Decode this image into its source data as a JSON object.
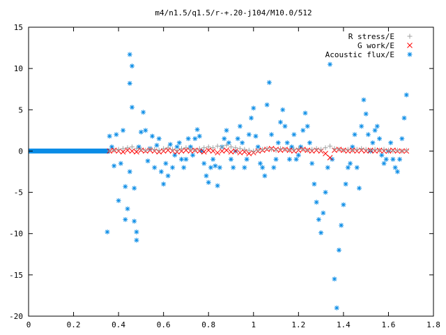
{
  "chart_data": {
    "type": "scatter",
    "title": "m4/n1.5/q1.5/r-+.20-j104/M10.0/512",
    "xlabel": "",
    "ylabel": "",
    "xlim": [
      0,
      1.8
    ],
    "ylim": [
      -20,
      15
    ],
    "x_ticks": [
      0,
      0.2,
      0.4,
      0.6,
      0.8,
      1,
      1.2,
      1.4,
      1.6,
      1.8
    ],
    "x_tick_labels": [
      "0",
      "0.2",
      "0.4",
      "0.6",
      "0.8",
      "1",
      "1.2",
      "1.4",
      "1.6",
      "1.8"
    ],
    "y_ticks": [
      -20,
      -15,
      -10,
      -5,
      0,
      5,
      10,
      15
    ],
    "y_tick_labels": [
      "-20",
      "-15",
      "-10",
      "-5",
      "0",
      "5",
      "10",
      "15"
    ],
    "grid": false,
    "legend_position": "top-right",
    "series": [
      {
        "name": "R stress/E",
        "marker": "plus",
        "color": "#a0a0a0",
        "points": [
          [
            0.36,
            0.0
          ],
          [
            0.38,
            0.1
          ],
          [
            0.4,
            0.2
          ],
          [
            0.42,
            0.3
          ],
          [
            0.44,
            0.4
          ],
          [
            0.46,
            0.5
          ],
          [
            0.48,
            0.3
          ],
          [
            0.5,
            0.2
          ],
          [
            0.52,
            0.1
          ],
          [
            0.54,
            0.3
          ],
          [
            0.56,
            0.2
          ],
          [
            0.58,
            0.1
          ],
          [
            0.6,
            0.3
          ],
          [
            0.62,
            0.4
          ],
          [
            0.64,
            0.2
          ],
          [
            0.66,
            0.1
          ],
          [
            0.68,
            0.3
          ],
          [
            0.7,
            0.4
          ],
          [
            0.72,
            0.2
          ],
          [
            0.74,
            0.1
          ],
          [
            0.76,
            0.3
          ],
          [
            0.78,
            0.4
          ],
          [
            0.8,
            0.5
          ],
          [
            0.82,
            0.4
          ],
          [
            0.84,
            0.6
          ],
          [
            0.86,
            0.5
          ],
          [
            0.88,
            0.7
          ],
          [
            0.9,
            0.5
          ],
          [
            0.92,
            0.4
          ],
          [
            0.94,
            0.3
          ],
          [
            0.96,
            0.2
          ],
          [
            0.98,
            0.1
          ],
          [
            1.0,
            0.0
          ],
          [
            1.02,
            0.1
          ],
          [
            1.04,
            0.2
          ],
          [
            1.06,
            0.3
          ],
          [
            1.08,
            0.2
          ],
          [
            1.1,
            0.1
          ],
          [
            1.12,
            0.3
          ],
          [
            1.14,
            0.2
          ],
          [
            1.16,
            0.1
          ],
          [
            1.18,
            0.2
          ],
          [
            1.2,
            0.3
          ],
          [
            1.22,
            0.2
          ],
          [
            1.24,
            0.1
          ],
          [
            1.26,
            0.2
          ],
          [
            1.28,
            0.3
          ],
          [
            1.3,
            0.2
          ],
          [
            1.32,
            0.4
          ],
          [
            1.34,
            0.6
          ],
          [
            1.36,
            0.3
          ],
          [
            1.38,
            0.2
          ],
          [
            1.4,
            0.1
          ],
          [
            1.42,
            0.2
          ],
          [
            1.44,
            0.1
          ],
          [
            1.46,
            0.2
          ],
          [
            1.48,
            0.3
          ],
          [
            1.5,
            0.2
          ],
          [
            1.52,
            0.1
          ],
          [
            1.54,
            0.2
          ],
          [
            1.56,
            0.1
          ],
          [
            1.58,
            0.2
          ],
          [
            1.6,
            0.1
          ],
          [
            1.62,
            0.0
          ],
          [
            1.64,
            0.1
          ],
          [
            1.66,
            0.0
          ],
          [
            1.68,
            0.1
          ]
        ]
      },
      {
        "name": "G work/E",
        "marker": "x",
        "color": "#ff0000",
        "points": [
          [
            0.36,
            0.0
          ],
          [
            0.38,
            0.1
          ],
          [
            0.4,
            0.0
          ],
          [
            0.42,
            -0.1
          ],
          [
            0.44,
            0.1
          ],
          [
            0.46,
            0.0
          ],
          [
            0.48,
            -0.1
          ],
          [
            0.5,
            0.1
          ],
          [
            0.52,
            0.0
          ],
          [
            0.54,
            0.1
          ],
          [
            0.56,
            0.0
          ],
          [
            0.58,
            -0.1
          ],
          [
            0.6,
            0.0
          ],
          [
            0.62,
            0.1
          ],
          [
            0.64,
            0.0
          ],
          [
            0.66,
            -0.1
          ],
          [
            0.68,
            0.0
          ],
          [
            0.7,
            0.1
          ],
          [
            0.72,
            0.0
          ],
          [
            0.74,
            0.1
          ],
          [
            0.76,
            0.0
          ],
          [
            0.78,
            -0.1
          ],
          [
            0.8,
            0.1
          ],
          [
            0.82,
            0.0
          ],
          [
            0.84,
            -0.2
          ],
          [
            0.86,
            0.0
          ],
          [
            0.88,
            0.1
          ],
          [
            0.9,
            -0.1
          ],
          [
            0.92,
            0.0
          ],
          [
            0.94,
            -0.2
          ],
          [
            0.96,
            -0.1
          ],
          [
            0.98,
            -0.3
          ],
          [
            1.0,
            -0.2
          ],
          [
            1.02,
            0.0
          ],
          [
            1.04,
            0.1
          ],
          [
            1.06,
            0.2
          ],
          [
            1.08,
            0.3
          ],
          [
            1.1,
            0.2
          ],
          [
            1.12,
            0.1
          ],
          [
            1.14,
            0.2
          ],
          [
            1.16,
            0.1
          ],
          [
            1.18,
            0.0
          ],
          [
            1.2,
            0.1
          ],
          [
            1.22,
            0.2
          ],
          [
            1.24,
            0.1
          ],
          [
            1.26,
            0.0
          ],
          [
            1.28,
            0.1
          ],
          [
            1.3,
            0.0
          ],
          [
            1.32,
            -0.3
          ],
          [
            1.34,
            -0.8
          ],
          [
            1.36,
            0.1
          ],
          [
            1.38,
            0.2
          ],
          [
            1.4,
            0.1
          ],
          [
            1.42,
            0.0
          ],
          [
            1.44,
            0.1
          ],
          [
            1.46,
            0.0
          ],
          [
            1.48,
            0.1
          ],
          [
            1.5,
            0.0
          ],
          [
            1.52,
            0.1
          ],
          [
            1.54,
            0.0
          ],
          [
            1.56,
            0.1
          ],
          [
            1.58,
            0.0
          ],
          [
            1.6,
            0.0
          ],
          [
            1.62,
            0.1
          ],
          [
            1.64,
            0.0
          ],
          [
            1.66,
            0.0
          ],
          [
            1.68,
            0.0
          ]
        ]
      },
      {
        "name": "Acoustic flux/E",
        "marker": "star",
        "color": "#0a8ce6",
        "points": [
          [
            0.35,
            -9.8
          ],
          [
            0.36,
            1.8
          ],
          [
            0.37,
            0.5
          ],
          [
            0.38,
            -1.8
          ],
          [
            0.39,
            2.0
          ],
          [
            0.4,
            -6.0
          ],
          [
            0.41,
            -1.5
          ],
          [
            0.42,
            2.5
          ],
          [
            0.43,
            -4.3
          ],
          [
            0.43,
            -8.3
          ],
          [
            0.44,
            -7.0
          ],
          [
            0.45,
            -2.5
          ],
          [
            0.45,
            8.2
          ],
          [
            0.45,
            11.7
          ],
          [
            0.46,
            10.3
          ],
          [
            0.46,
            5.3
          ],
          [
            0.47,
            -4.5
          ],
          [
            0.47,
            -8.5
          ],
          [
            0.48,
            -9.8
          ],
          [
            0.48,
            -10.8
          ],
          [
            0.49,
            0.5
          ],
          [
            0.5,
            2.3
          ],
          [
            0.51,
            4.7
          ],
          [
            0.52,
            2.5
          ],
          [
            0.53,
            -1.2
          ],
          [
            0.54,
            0.3
          ],
          [
            0.55,
            1.8
          ],
          [
            0.56,
            -2.0
          ],
          [
            0.57,
            0.7
          ],
          [
            0.58,
            1.5
          ],
          [
            0.59,
            -2.5
          ],
          [
            0.6,
            -4.0
          ],
          [
            0.61,
            -1.5
          ],
          [
            0.62,
            -3.0
          ],
          [
            0.63,
            0.8
          ],
          [
            0.64,
            -2.0
          ],
          [
            0.65,
            -0.5
          ],
          [
            0.66,
            0.5
          ],
          [
            0.67,
            1.0
          ],
          [
            0.68,
            -1.0
          ],
          [
            0.69,
            -2.0
          ],
          [
            0.7,
            -1.0
          ],
          [
            0.71,
            1.5
          ],
          [
            0.72,
            0.5
          ],
          [
            0.73,
            -0.5
          ],
          [
            0.74,
            1.5
          ],
          [
            0.75,
            2.6
          ],
          [
            0.76,
            1.8
          ],
          [
            0.77,
            0.0
          ],
          [
            0.78,
            -1.5
          ],
          [
            0.79,
            -3.0
          ],
          [
            0.8,
            -3.8
          ],
          [
            0.81,
            -2.0
          ],
          [
            0.82,
            -1.0
          ],
          [
            0.83,
            -1.8
          ],
          [
            0.84,
            -4.2
          ],
          [
            0.85,
            -2.0
          ],
          [
            0.86,
            0.5
          ],
          [
            0.87,
            1.5
          ],
          [
            0.88,
            2.5
          ],
          [
            0.89,
            1.0
          ],
          [
            0.9,
            -1.0
          ],
          [
            0.91,
            -2.0
          ],
          [
            0.92,
            0.0
          ],
          [
            0.93,
            1.5
          ],
          [
            0.94,
            3.0
          ],
          [
            0.95,
            1.0
          ],
          [
            0.96,
            -2.0
          ],
          [
            0.97,
            -1.0
          ],
          [
            0.98,
            2.0
          ],
          [
            0.99,
            4.0
          ],
          [
            1.0,
            5.2
          ],
          [
            1.01,
            1.8
          ],
          [
            1.02,
            0.5
          ],
          [
            1.03,
            -1.5
          ],
          [
            1.04,
            -2.0
          ],
          [
            1.05,
            -3.0
          ],
          [
            1.06,
            5.6
          ],
          [
            1.07,
            8.3
          ],
          [
            1.08,
            2.0
          ],
          [
            1.09,
            -2.0
          ],
          [
            1.1,
            -1.0
          ],
          [
            1.11,
            1.0
          ],
          [
            1.12,
            3.5
          ],
          [
            1.13,
            5.0
          ],
          [
            1.14,
            3.0
          ],
          [
            1.15,
            1.0
          ],
          [
            1.16,
            -1.0
          ],
          [
            1.17,
            0.5
          ],
          [
            1.18,
            2.0
          ],
          [
            1.19,
            -1.0
          ],
          [
            1.2,
            -0.5
          ],
          [
            1.21,
            0.5
          ],
          [
            1.22,
            2.5
          ],
          [
            1.23,
            4.6
          ],
          [
            1.24,
            3.0
          ],
          [
            1.25,
            1.0
          ],
          [
            1.26,
            -1.5
          ],
          [
            1.27,
            -4.0
          ],
          [
            1.28,
            -6.2
          ],
          [
            1.29,
            -8.3
          ],
          [
            1.3,
            -9.9
          ],
          [
            1.31,
            -7.5
          ],
          [
            1.32,
            -5.0
          ],
          [
            1.33,
            -2.0
          ],
          [
            1.34,
            10.5
          ],
          [
            1.35,
            -1.0
          ],
          [
            1.36,
            -15.5
          ],
          [
            1.37,
            -19.0
          ],
          [
            1.38,
            -12.0
          ],
          [
            1.39,
            -9.0
          ],
          [
            1.4,
            -6.5
          ],
          [
            1.41,
            -4.0
          ],
          [
            1.42,
            -2.0
          ],
          [
            1.43,
            -1.5
          ],
          [
            1.44,
            0.5
          ],
          [
            1.45,
            2.0
          ],
          [
            1.46,
            -2.0
          ],
          [
            1.47,
            -4.5
          ],
          [
            1.48,
            3.0
          ],
          [
            1.49,
            6.2
          ],
          [
            1.5,
            4.5
          ],
          [
            1.51,
            2.0
          ],
          [
            1.52,
            0.0
          ],
          [
            1.53,
            1.0
          ],
          [
            1.54,
            2.5
          ],
          [
            1.55,
            3.0
          ],
          [
            1.56,
            1.5
          ],
          [
            1.57,
            -0.5
          ],
          [
            1.58,
            -1.5
          ],
          [
            1.59,
            -1.0
          ],
          [
            1.6,
            0.0
          ],
          [
            1.61,
            1.0
          ],
          [
            1.62,
            -1.0
          ],
          [
            1.63,
            -2.0
          ],
          [
            1.64,
            -2.5
          ],
          [
            1.65,
            -1.0
          ],
          [
            1.66,
            1.5
          ],
          [
            1.67,
            4.0
          ],
          [
            1.68,
            6.8
          ]
        ]
      }
    ]
  }
}
